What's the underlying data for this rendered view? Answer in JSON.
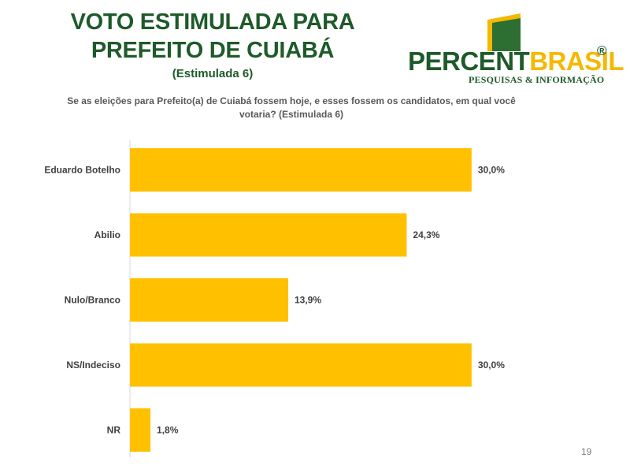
{
  "header": {
    "title_line1": "VOTO ESTIMULADA PARA",
    "title_line2": "PREFEITO DE CUIABÁ",
    "subtitle": "(Estimulada 6)",
    "question": "Se as eleições para Prefeito(a) de Cuiabá fossem hoje, e esses fossem os candidatos, em qual você votaria? (Estimulada 6)"
  },
  "logo": {
    "word1": "PERCENT",
    "word2": "BRASIL",
    "registered": "®",
    "tagline": "PESQUISAS & INFORMAÇÃO"
  },
  "page_number": "19",
  "colors": {
    "bar": "#ffc000",
    "title": "#1e5a2a",
    "accent": "#f5b800",
    "label": "#404040"
  },
  "chart_data": {
    "type": "bar",
    "orientation": "horizontal",
    "categories": [
      "Eduardo Botelho",
      "Abilio",
      "Nulo/Branco",
      "NS/Indeciso",
      "NR"
    ],
    "values": [
      30.0,
      24.3,
      13.9,
      30.0,
      1.8
    ],
    "data_labels": [
      "30,0%",
      "24,3%",
      "13,9%",
      "30,0%",
      "1,8%"
    ],
    "unit": "%",
    "xlim": [
      0,
      32.5
    ],
    "grid": false,
    "legend": "none",
    "title": "",
    "xlabel": "",
    "ylabel": ""
  }
}
